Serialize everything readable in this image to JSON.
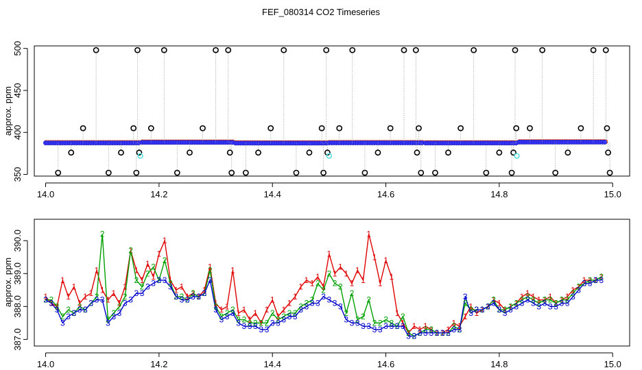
{
  "title": "FEF_080314  CO2 Timeseries",
  "chart_data": [
    {
      "type": "scatter",
      "ylabel": "approx. ppm",
      "xlim": [
        13.98,
        15.03
      ],
      "ylim": [
        348,
        503
      ],
      "xticks": [
        14.0,
        14.2,
        14.4,
        14.6,
        14.8,
        15.0
      ],
      "xtick_labels": [
        "14.0",
        "14.2",
        "14.4",
        "14.6",
        "14.8",
        "15.0"
      ],
      "yticks": [
        350,
        400,
        450,
        500
      ],
      "ytick_labels": [
        "350",
        "400",
        "450",
        "500"
      ],
      "baseline_segments": [
        {
          "x0": 14.0,
          "x1": 14.165,
          "y": 387.5
        },
        {
          "x0": 14.17,
          "x1": 14.33,
          "y": 388.2
        },
        {
          "x0": 14.335,
          "x1": 14.495,
          "y": 387.3
        },
        {
          "x0": 14.5,
          "x1": 14.665,
          "y": 387.6
        },
        {
          "x0": 14.67,
          "x1": 14.83,
          "y": 387.4
        },
        {
          "x0": 14.835,
          "x1": 14.99,
          "y": 388.5
        }
      ],
      "marker_step": 0.0042,
      "spikes": [
        {
          "x": 14.022,
          "y": 352
        },
        {
          "x": 14.045,
          "y": 376
        },
        {
          "x": 14.066,
          "y": 405
        },
        {
          "x": 14.089,
          "y": 498
        },
        {
          "x": 14.111,
          "y": 352
        },
        {
          "x": 14.133,
          "y": 376
        },
        {
          "x": 14.155,
          "y": 405
        },
        {
          "x": 14.16,
          "y": 352
        },
        {
          "x": 14.162,
          "y": 498
        },
        {
          "x": 14.165,
          "y": 376
        },
        {
          "x": 14.186,
          "y": 405
        },
        {
          "x": 14.209,
          "y": 498
        },
        {
          "x": 14.232,
          "y": 352
        },
        {
          "x": 14.254,
          "y": 376
        },
        {
          "x": 14.277,
          "y": 405
        },
        {
          "x": 14.3,
          "y": 498
        },
        {
          "x": 14.322,
          "y": 498
        },
        {
          "x": 14.325,
          "y": 376
        },
        {
          "x": 14.328,
          "y": 352
        },
        {
          "x": 14.353,
          "y": 352
        },
        {
          "x": 14.375,
          "y": 376
        },
        {
          "x": 14.397,
          "y": 405
        },
        {
          "x": 14.42,
          "y": 498
        },
        {
          "x": 14.442,
          "y": 352
        },
        {
          "x": 14.465,
          "y": 376
        },
        {
          "x": 14.487,
          "y": 405
        },
        {
          "x": 14.49,
          "y": 352
        },
        {
          "x": 14.495,
          "y": 498
        },
        {
          "x": 14.497,
          "y": 376
        },
        {
          "x": 14.518,
          "y": 405
        },
        {
          "x": 14.541,
          "y": 498
        },
        {
          "x": 14.563,
          "y": 352
        },
        {
          "x": 14.586,
          "y": 376
        },
        {
          "x": 14.608,
          "y": 405
        },
        {
          "x": 14.632,
          "y": 498
        },
        {
          "x": 14.653,
          "y": 498
        },
        {
          "x": 14.655,
          "y": 376
        },
        {
          "x": 14.658,
          "y": 405
        },
        {
          "x": 14.662,
          "y": 352
        },
        {
          "x": 14.687,
          "y": 352
        },
        {
          "x": 14.71,
          "y": 376
        },
        {
          "x": 14.732,
          "y": 405
        },
        {
          "x": 14.755,
          "y": 498
        },
        {
          "x": 14.777,
          "y": 352
        },
        {
          "x": 14.8,
          "y": 376
        },
        {
          "x": 14.822,
          "y": 352
        },
        {
          "x": 14.825,
          "y": 376
        },
        {
          "x": 14.828,
          "y": 498
        },
        {
          "x": 14.83,
          "y": 405
        },
        {
          "x": 14.854,
          "y": 405
        },
        {
          "x": 14.876,
          "y": 498
        },
        {
          "x": 14.899,
          "y": 352
        },
        {
          "x": 14.921,
          "y": 376
        },
        {
          "x": 14.944,
          "y": 405
        },
        {
          "x": 14.966,
          "y": 498
        },
        {
          "x": 14.988,
          "y": 498
        },
        {
          "x": 14.99,
          "y": 405
        },
        {
          "x": 14.992,
          "y": 376
        },
        {
          "x": 14.995,
          "y": 352
        }
      ],
      "cyan_points": [
        {
          "x": 14.167,
          "y": 372
        },
        {
          "x": 14.5,
          "y": 372
        },
        {
          "x": 14.831,
          "y": 372
        }
      ],
      "colors": {
        "ring": "#000000",
        "fill": "#3333ff",
        "edge": "#ff3300",
        "cyan": "#55e0e0",
        "connector": "#999999"
      }
    },
    {
      "type": "line",
      "ylabel": "approx. ppm",
      "xlim": [
        13.98,
        15.03
      ],
      "ylim": [
        386.8,
        390.65
      ],
      "xticks": [
        14.0,
        14.2,
        14.4,
        14.6,
        14.8,
        15.0
      ],
      "xtick_labels": [
        "14.0",
        "14.2",
        "14.4",
        "14.6",
        "14.8",
        "15.0"
      ],
      "yticks": [
        387.0,
        388.0,
        389.0,
        390.0
      ],
      "ytick_labels": [
        "387.0",
        "388.0",
        "389.0",
        "390.0"
      ],
      "series": [
        {
          "name": "1",
          "color": "#e00000",
          "x": [
            14.0,
            14.01,
            14.02,
            14.03,
            14.04,
            14.05,
            14.06,
            14.07,
            14.08,
            14.09,
            14.1,
            14.11,
            14.12,
            14.13,
            14.14,
            14.15,
            14.16,
            14.17,
            14.18,
            14.19,
            14.2,
            14.21,
            14.22,
            14.23,
            14.24,
            14.25,
            14.26,
            14.27,
            14.28,
            14.29,
            14.3,
            14.31,
            14.32,
            14.33,
            14.34,
            14.35,
            14.36,
            14.37,
            14.38,
            14.39,
            14.4,
            14.41,
            14.42,
            14.43,
            14.44,
            14.45,
            14.46,
            14.47,
            14.48,
            14.49,
            14.5,
            14.51,
            14.52,
            14.53,
            14.54,
            14.55,
            14.56,
            14.57,
            14.58,
            14.59,
            14.6,
            14.61,
            14.62,
            14.63,
            14.64,
            14.65,
            14.66,
            14.67,
            14.68,
            14.69,
            14.7,
            14.71,
            14.72,
            14.73,
            14.74,
            14.75,
            14.76,
            14.77,
            14.78,
            14.79,
            14.8,
            14.81,
            14.82,
            14.83,
            14.84,
            14.85,
            14.86,
            14.87,
            14.88,
            14.89,
            14.9,
            14.91,
            14.92,
            14.93,
            14.94,
            14.95,
            14.96,
            14.97,
            14.98
          ],
          "y": [
            388.3,
            388.1,
            388.0,
            388.8,
            388.3,
            388.6,
            388.1,
            388.3,
            388.4,
            389.1,
            388.5,
            388.2,
            388.4,
            388.1,
            388.6,
            389.7,
            389.1,
            388.8,
            389.3,
            388.9,
            389.6,
            390.0,
            388.8,
            388.5,
            388.6,
            388.3,
            388.4,
            388.3,
            388.5,
            389.2,
            388.1,
            387.9,
            388.0,
            389.1,
            387.8,
            387.9,
            387.6,
            387.8,
            387.5,
            387.9,
            388.2,
            387.7,
            387.9,
            388.1,
            388.3,
            388.6,
            388.8,
            388.7,
            388.9,
            388.6,
            389.6,
            389.0,
            389.2,
            389.0,
            388.7,
            389.1,
            388.8,
            390.2,
            389.5,
            388.7,
            389.4,
            388.9,
            387.8,
            387.5,
            387.2,
            387.4,
            387.3,
            387.4,
            387.3,
            387.2,
            387.2,
            387.3,
            387.5,
            387.4,
            387.7,
            388.0,
            387.8,
            387.9,
            388.0,
            388.2,
            388.1,
            387.9,
            388.0,
            388.1,
            388.3,
            388.4,
            388.3,
            388.2,
            388.2,
            388.3,
            388.1,
            388.2,
            388.3,
            388.5,
            388.6,
            388.8,
            388.8,
            388.8,
            388.9
          ]
        },
        {
          "name": "2",
          "color": "#00a000",
          "x": [
            14.0,
            14.01,
            14.02,
            14.03,
            14.04,
            14.05,
            14.06,
            14.07,
            14.08,
            14.09,
            14.1,
            14.11,
            14.12,
            14.13,
            14.14,
            14.15,
            14.16,
            14.17,
            14.18,
            14.19,
            14.2,
            14.21,
            14.22,
            14.23,
            14.24,
            14.25,
            14.26,
            14.27,
            14.28,
            14.29,
            14.3,
            14.31,
            14.32,
            14.33,
            14.34,
            14.35,
            14.36,
            14.37,
            14.38,
            14.39,
            14.4,
            14.41,
            14.42,
            14.43,
            14.44,
            14.45,
            14.46,
            14.47,
            14.48,
            14.49,
            14.5,
            14.51,
            14.52,
            14.53,
            14.54,
            14.55,
            14.56,
            14.57,
            14.58,
            14.59,
            14.6,
            14.61,
            14.62,
            14.63,
            14.64,
            14.65,
            14.66,
            14.67,
            14.68,
            14.69,
            14.7,
            14.71,
            14.72,
            14.73,
            14.74,
            14.75,
            14.76,
            14.77,
            14.78,
            14.79,
            14.8,
            14.81,
            14.82,
            14.83,
            14.84,
            14.85,
            14.86,
            14.87,
            14.88,
            14.89,
            14.9,
            14.91,
            14.92,
            14.93,
            14.94,
            14.95,
            14.96,
            14.97,
            14.98
          ],
          "y": [
            388.2,
            388.2,
            388.0,
            387.7,
            387.9,
            387.8,
            388.0,
            387.9,
            388.1,
            388.3,
            390.2,
            387.6,
            387.8,
            388.0,
            388.3,
            389.7,
            388.8,
            388.6,
            389.0,
            389.2,
            388.8,
            389.4,
            388.7,
            388.3,
            388.3,
            388.2,
            388.4,
            388.3,
            388.4,
            389.1,
            388.0,
            387.7,
            387.8,
            387.9,
            387.6,
            387.6,
            387.5,
            387.5,
            387.5,
            387.5,
            387.8,
            387.6,
            387.7,
            387.8,
            387.8,
            388.0,
            388.1,
            388.2,
            388.7,
            388.5,
            389.0,
            388.7,
            388.6,
            387.8,
            388.4,
            387.6,
            387.7,
            388.2,
            387.5,
            387.5,
            387.6,
            387.5,
            387.4,
            387.7,
            387.2,
            387.1,
            387.2,
            387.3,
            387.3,
            387.2,
            387.2,
            387.2,
            387.4,
            387.3,
            388.1,
            387.9,
            387.9,
            387.9,
            388.0,
            388.2,
            387.9,
            387.9,
            388.0,
            388.1,
            388.2,
            388.3,
            388.2,
            388.1,
            388.2,
            388.2,
            388.1,
            388.2,
            388.2,
            388.4,
            388.6,
            388.7,
            388.8,
            388.8,
            388.9
          ]
        },
        {
          "name": "3",
          "color": "#0000cc",
          "x": [
            14.0,
            14.01,
            14.02,
            14.03,
            14.04,
            14.05,
            14.06,
            14.07,
            14.08,
            14.09,
            14.1,
            14.11,
            14.12,
            14.13,
            14.14,
            14.15,
            14.16,
            14.17,
            14.18,
            14.19,
            14.2,
            14.21,
            14.22,
            14.23,
            14.24,
            14.25,
            14.26,
            14.27,
            14.28,
            14.29,
            14.3,
            14.31,
            14.32,
            14.33,
            14.34,
            14.35,
            14.36,
            14.37,
            14.38,
            14.39,
            14.4,
            14.41,
            14.42,
            14.43,
            14.44,
            14.45,
            14.46,
            14.47,
            14.48,
            14.49,
            14.5,
            14.51,
            14.52,
            14.53,
            14.54,
            14.55,
            14.56,
            14.57,
            14.58,
            14.59,
            14.6,
            14.61,
            14.62,
            14.63,
            14.64,
            14.65,
            14.66,
            14.67,
            14.68,
            14.69,
            14.7,
            14.71,
            14.72,
            14.73,
            14.74,
            14.75,
            14.76,
            14.77,
            14.78,
            14.79,
            14.8,
            14.81,
            14.82,
            14.83,
            14.84,
            14.85,
            14.86,
            14.87,
            14.88,
            14.89,
            14.9,
            14.91,
            14.92,
            14.93,
            14.94,
            14.95,
            14.96,
            14.97,
            14.98
          ],
          "y": [
            388.2,
            388.1,
            387.9,
            387.5,
            387.7,
            387.8,
            387.9,
            387.9,
            388.1,
            388.2,
            388.2,
            387.5,
            387.7,
            387.8,
            388.1,
            388.2,
            388.4,
            388.4,
            388.6,
            388.7,
            388.8,
            388.8,
            388.6,
            388.3,
            388.2,
            388.2,
            388.3,
            388.3,
            388.4,
            388.8,
            387.9,
            387.6,
            387.7,
            387.8,
            387.5,
            387.4,
            387.4,
            387.4,
            387.3,
            387.3,
            387.5,
            387.5,
            387.6,
            387.7,
            387.7,
            387.9,
            388.0,
            388.1,
            388.1,
            388.3,
            388.2,
            388.1,
            388.0,
            387.6,
            387.5,
            387.5,
            387.4,
            387.4,
            387.3,
            387.3,
            387.4,
            387.4,
            387.4,
            387.4,
            387.1,
            387.1,
            387.2,
            387.2,
            387.2,
            387.2,
            387.2,
            387.2,
            387.3,
            387.3,
            388.3,
            387.8,
            387.9,
            387.9,
            388.0,
            388.1,
            387.9,
            387.8,
            387.9,
            388.0,
            388.1,
            388.2,
            388.1,
            388.0,
            388.1,
            388.0,
            388.0,
            388.1,
            388.1,
            388.3,
            388.5,
            388.7,
            388.7,
            388.8,
            388.8
          ]
        }
      ]
    }
  ]
}
